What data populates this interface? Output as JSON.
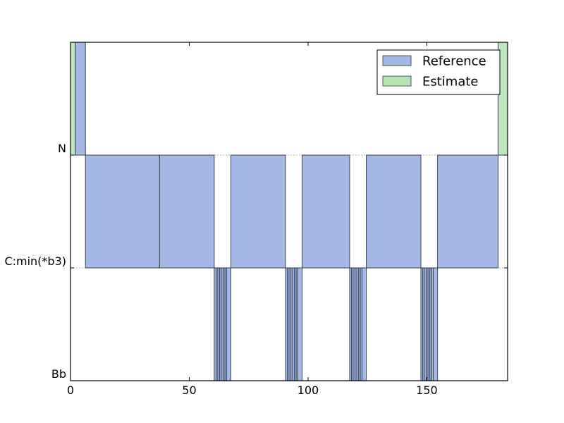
{
  "chart_data": {
    "type": "bar",
    "orientation": "interval-segments",
    "xlim": [
      0,
      184
    ],
    "x_ticks": [
      0,
      50,
      100,
      150
    ],
    "y_categories": [
      "N",
      "C:min(*b3)",
      "Bb"
    ],
    "legend": {
      "placement": "top-right",
      "entries": [
        {
          "label": "Reference",
          "color": "#a4b9e6"
        },
        {
          "label": "Estimate",
          "color": "#b3e3b3"
        }
      ]
    },
    "grid": false,
    "series": [
      {
        "name": "Reference",
        "color": "#a4b9e6",
        "segments": [
          {
            "label": "N",
            "start": 2.0,
            "end": 6.3
          },
          {
            "label": "C:min(*b3)",
            "start": 6.3,
            "end": 37.5
          },
          {
            "label": "C:min(*b3)",
            "start": 37.5,
            "end": 60.5
          },
          {
            "label": "Bb",
            "start": 60.5,
            "end": 61.3
          },
          {
            "label": "Bb",
            "start": 61.3,
            "end": 62.0
          },
          {
            "label": "Bb",
            "start": 62.0,
            "end": 62.8
          },
          {
            "label": "Bb",
            "start": 62.8,
            "end": 63.5
          },
          {
            "label": "Bb",
            "start": 63.5,
            "end": 64.3
          },
          {
            "label": "Bb",
            "start": 64.3,
            "end": 65.0
          },
          {
            "label": "Bb",
            "start": 65.0,
            "end": 65.7
          },
          {
            "label": "Bb",
            "start": 65.7,
            "end": 67.5
          },
          {
            "label": "C:min(*b3)",
            "start": 67.5,
            "end": 90.5
          },
          {
            "label": "Bb",
            "start": 90.5,
            "end": 91.3
          },
          {
            "label": "Bb",
            "start": 91.3,
            "end": 92.0
          },
          {
            "label": "Bb",
            "start": 92.0,
            "end": 92.8
          },
          {
            "label": "Bb",
            "start": 92.8,
            "end": 93.5
          },
          {
            "label": "Bb",
            "start": 93.5,
            "end": 94.3
          },
          {
            "label": "Bb",
            "start": 94.3,
            "end": 95.0
          },
          {
            "label": "Bb",
            "start": 95.0,
            "end": 95.7
          },
          {
            "label": "Bb",
            "start": 95.7,
            "end": 97.5
          },
          {
            "label": "C:min(*b3)",
            "start": 97.5,
            "end": 117.5
          },
          {
            "label": "Bb",
            "start": 117.5,
            "end": 118.3
          },
          {
            "label": "Bb",
            "start": 118.3,
            "end": 119.0
          },
          {
            "label": "Bb",
            "start": 119.0,
            "end": 119.8
          },
          {
            "label": "Bb",
            "start": 119.8,
            "end": 120.5
          },
          {
            "label": "Bb",
            "start": 120.5,
            "end": 121.3
          },
          {
            "label": "Bb",
            "start": 121.3,
            "end": 122.0
          },
          {
            "label": "Bb",
            "start": 122.0,
            "end": 122.7
          },
          {
            "label": "Bb",
            "start": 122.7,
            "end": 124.5
          },
          {
            "label": "C:min(*b3)",
            "start": 124.5,
            "end": 147.5
          },
          {
            "label": "Bb",
            "start": 147.5,
            "end": 148.3
          },
          {
            "label": "Bb",
            "start": 148.3,
            "end": 149.0
          },
          {
            "label": "Bb",
            "start": 149.0,
            "end": 149.8
          },
          {
            "label": "Bb",
            "start": 149.8,
            "end": 150.5
          },
          {
            "label": "Bb",
            "start": 150.5,
            "end": 151.3
          },
          {
            "label": "Bb",
            "start": 151.3,
            "end": 152.0
          },
          {
            "label": "Bb",
            "start": 152.0,
            "end": 152.7
          },
          {
            "label": "Bb",
            "start": 152.7,
            "end": 154.5
          },
          {
            "label": "C:min(*b3)",
            "start": 154.5,
            "end": 180.0
          }
        ]
      },
      {
        "name": "Estimate",
        "color": "#b3e3b3",
        "segments": [
          {
            "label": "N",
            "start": 0.0,
            "end": 2.0
          },
          {
            "label": "N",
            "start": 180.0,
            "end": 184.0
          }
        ]
      }
    ]
  }
}
